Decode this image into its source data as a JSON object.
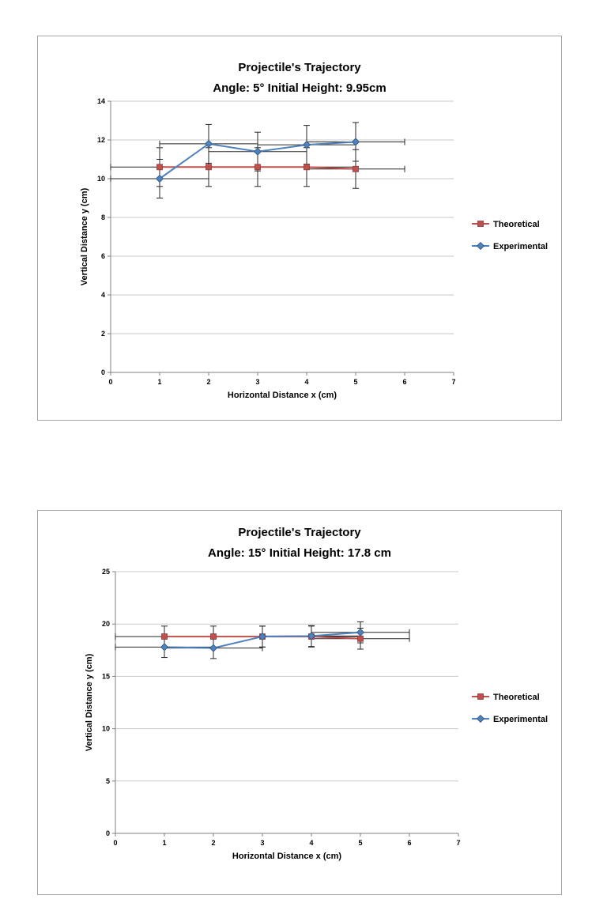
{
  "page": {
    "background": "#ffffff"
  },
  "chart_data": [
    {
      "type": "line",
      "title": "Projectile's Trajectory",
      "subtitle": "Angle: 5° Initial Height: 9.95cm",
      "xlabel": "Horizontal Distance x (cm)",
      "ylabel": "Vertical Distance y (cm)",
      "xlim": [
        0,
        7
      ],
      "ylim": [
        0,
        14
      ],
      "xticks": [
        0,
        1,
        2,
        3,
        4,
        5,
        6,
        7
      ],
      "yticks": [
        0,
        2,
        4,
        6,
        8,
        10,
        12,
        14
      ],
      "grid": "horizontal",
      "legend_position": "right",
      "x": [
        1,
        2,
        3,
        4,
        5
      ],
      "series": [
        {
          "name": "Theoretical",
          "color": "#C0504D",
          "marker": "square",
          "values": [
            10.6,
            10.6,
            10.6,
            10.6,
            10.5
          ],
          "x_err": 1,
          "y_err": 1
        },
        {
          "name": "Experimental",
          "color": "#4F81BD",
          "marker": "diamond",
          "values": [
            10.0,
            11.8,
            11.4,
            11.75,
            11.9
          ],
          "x_err": 1,
          "y_err": 1
        }
      ]
    },
    {
      "type": "line",
      "title": "Projectile's Trajectory",
      "subtitle": "Angle: 15° Initial Height: 17.8 cm",
      "xlabel": "Horizontal Distance x (cm)",
      "ylabel": "Vertical Distance y (cm)",
      "xlim": [
        0,
        7
      ],
      "ylim": [
        0,
        25
      ],
      "xticks": [
        0,
        1,
        2,
        3,
        4,
        5,
        6,
        7
      ],
      "yticks": [
        0,
        5,
        10,
        15,
        20,
        25
      ],
      "grid": "horizontal",
      "legend_position": "right",
      "x": [
        1,
        2,
        3,
        4,
        5
      ],
      "series": [
        {
          "name": "Theoretical",
          "color": "#C0504D",
          "marker": "square",
          "values": [
            18.8,
            18.8,
            18.8,
            18.8,
            18.6
          ],
          "x_err": 1,
          "y_err": 1
        },
        {
          "name": "Experimental",
          "color": "#4F81BD",
          "marker": "diamond",
          "values": [
            17.8,
            17.7,
            18.8,
            18.85,
            19.2
          ],
          "x_err": 1,
          "y_err": 1
        }
      ]
    }
  ]
}
